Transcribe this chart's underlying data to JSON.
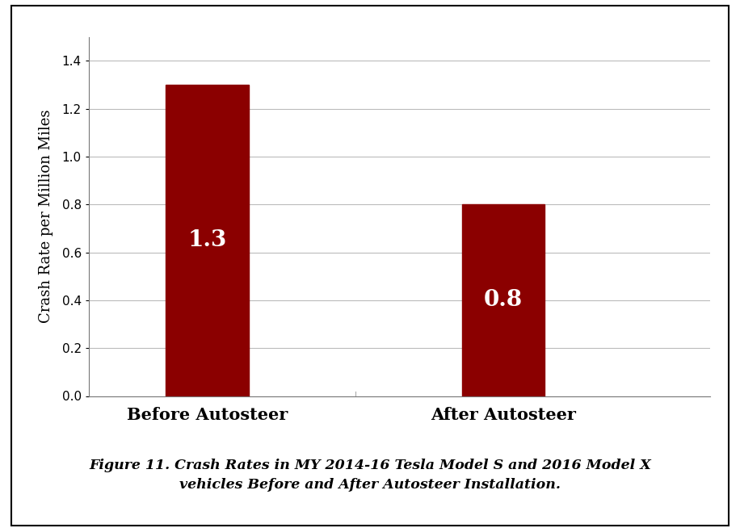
{
  "categories": [
    "Before Autosteer",
    "After Autosteer"
  ],
  "values": [
    1.3,
    0.8
  ],
  "bar_color": "#8B0000",
  "bar_labels": [
    "1.3",
    "0.8"
  ],
  "bar_label_color": "#FFFFFF",
  "bar_label_fontsize": 20,
  "ylabel": "Crash Rate per Million Miles",
  "ylabel_fontsize": 13,
  "xtick_fontsize": 15,
  "ytick_fontsize": 11,
  "ylim": [
    0,
    1.5
  ],
  "yticks": [
    0.0,
    0.2,
    0.4,
    0.6,
    0.8,
    1.0,
    1.2,
    1.4
  ],
  "grid_color": "#BBBBBB",
  "background_color": "#FFFFFF",
  "figure_background": "#FFFFFF",
  "caption_line1": "Figure 11. Crash Rates in MY 2014-16 Tesla Model S and 2016 Model X",
  "caption_line2": "vehicles Before and After Autosteer Installation.",
  "caption_fontsize": 12.5,
  "border_color": "#000000",
  "bar_width": 0.28,
  "x_positions": [
    1,
    2
  ]
}
